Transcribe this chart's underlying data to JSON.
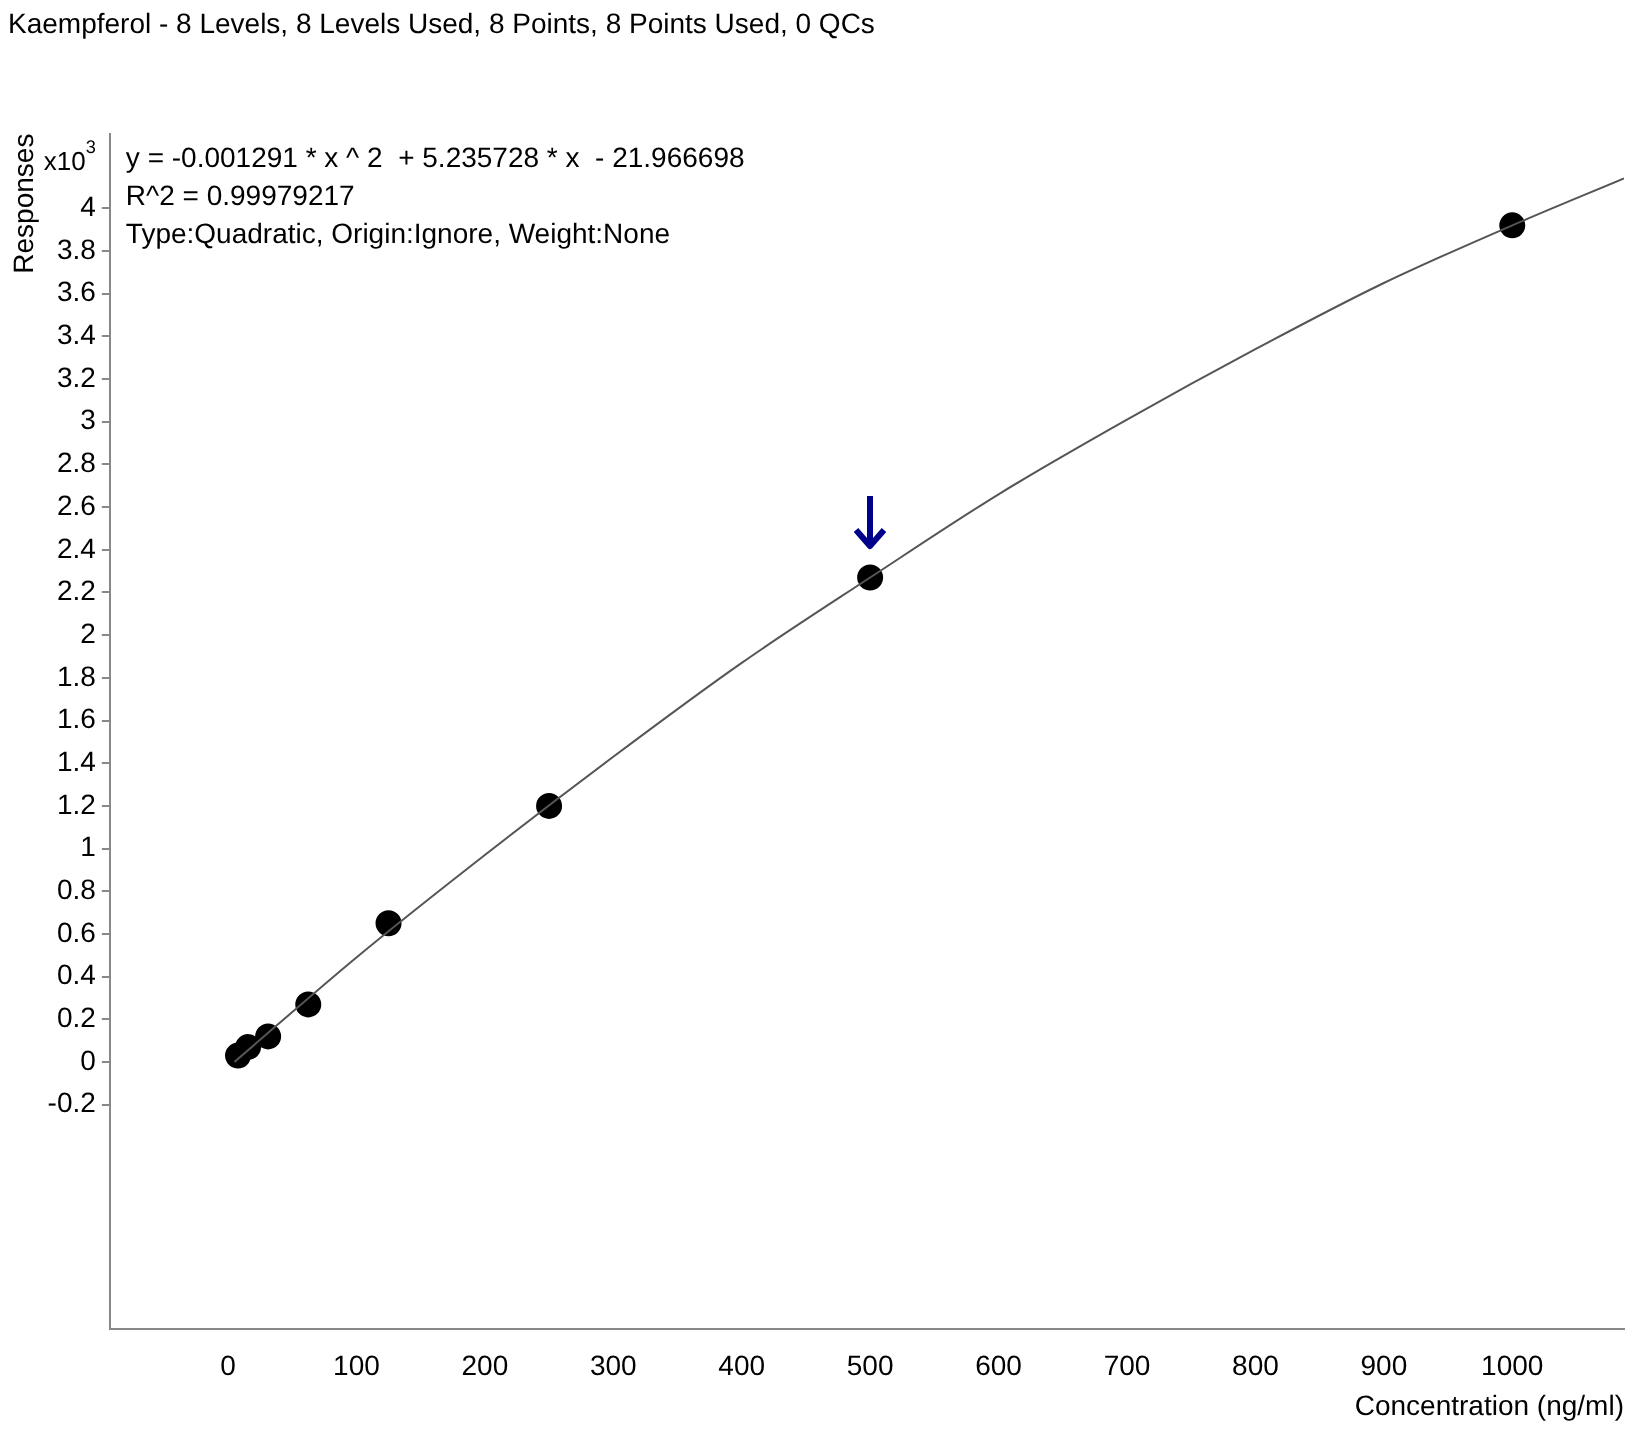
{
  "chart_data": {
    "type": "scatter",
    "title": "Kaempferol - 8 Levels, 8 Levels Used, 8 Points, 8 Points Used, 0 QCs",
    "xlabel": "Concentration (ng/ml)",
    "ylabel": "Responses",
    "annotations": [
      "x10$^{3}$",
      "y = -0.001291 * x ^ 2  + 5.235728 * x  - 21.966698",
      "R^2 = 0.99979217",
      "Type:Quadratic, Origin:Ignore, Weight:None"
    ],
    "series": [
      {
        "type": "line",
        "color": "#555555",
        "marker": "none",
        "x": [
          5,
          100,
          200,
          300,
          400,
          500,
          600,
          700,
          800,
          900,
          1000,
          1087
        ],
        "values": [
          0,
          0.49,
          0.97,
          1.43,
          1.87,
          2.27,
          2.66,
          3.01,
          3.34,
          3.65,
          3.92,
          4.14
        ]
      },
      {
        "type": "scatter",
        "color": "#000000",
        "marker": "circle",
        "x": [
          7.8,
          15.6,
          31.25,
          62.5,
          125,
          250,
          500,
          1000
        ],
        "values": [
          0.03,
          0.07,
          0.12,
          0.27,
          0.65,
          1.2,
          2.27,
          3.92
        ]
      }
    ],
    "xlim": [
      -92,
      1087
    ],
    "xticks": [
      0,
      100,
      200,
      300,
      400,
      500,
      600,
      700,
      800,
      900,
      1000
    ],
    "ylim": [
      -1.25,
      4.35
    ],
    "yticks": [
      -0.2,
      0,
      0.2,
      0.4,
      0.6,
      0.8,
      1,
      1.2,
      1.4,
      1.6,
      1.8,
      2,
      2.2,
      2.4,
      2.6,
      2.8,
      3,
      3.2,
      3.4,
      3.6,
      3.8,
      4
    ],
    "grid": false,
    "legend": false
  }
}
